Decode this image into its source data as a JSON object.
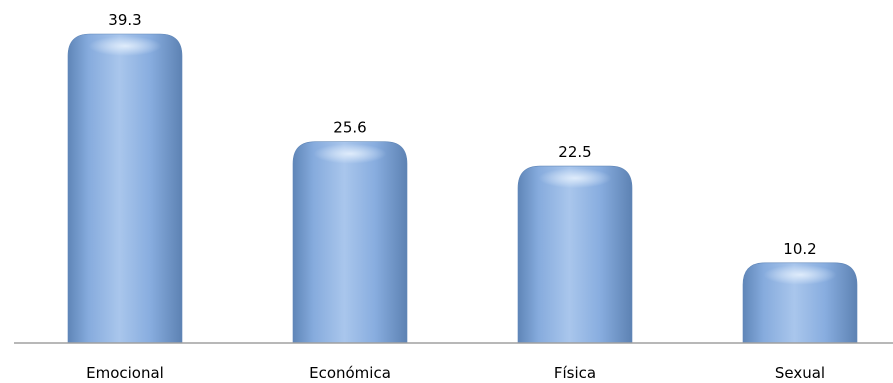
{
  "chart_data": {
    "type": "bar",
    "title": "",
    "xlabel": "",
    "ylabel": "",
    "categories": [
      "Emocional",
      "Económica",
      "Física",
      "Sexual"
    ],
    "values": [
      39.3,
      25.6,
      22.5,
      10.2
    ],
    "value_labels": [
      "39.3",
      "25.6",
      "22.5",
      "10.2"
    ],
    "ylim": [
      0,
      39.3
    ],
    "grid": false,
    "legend": "none",
    "bar_color": "#8FB3E3",
    "bar_edge_color": "#5F86B8",
    "axis_color": "#A0A0A0"
  }
}
